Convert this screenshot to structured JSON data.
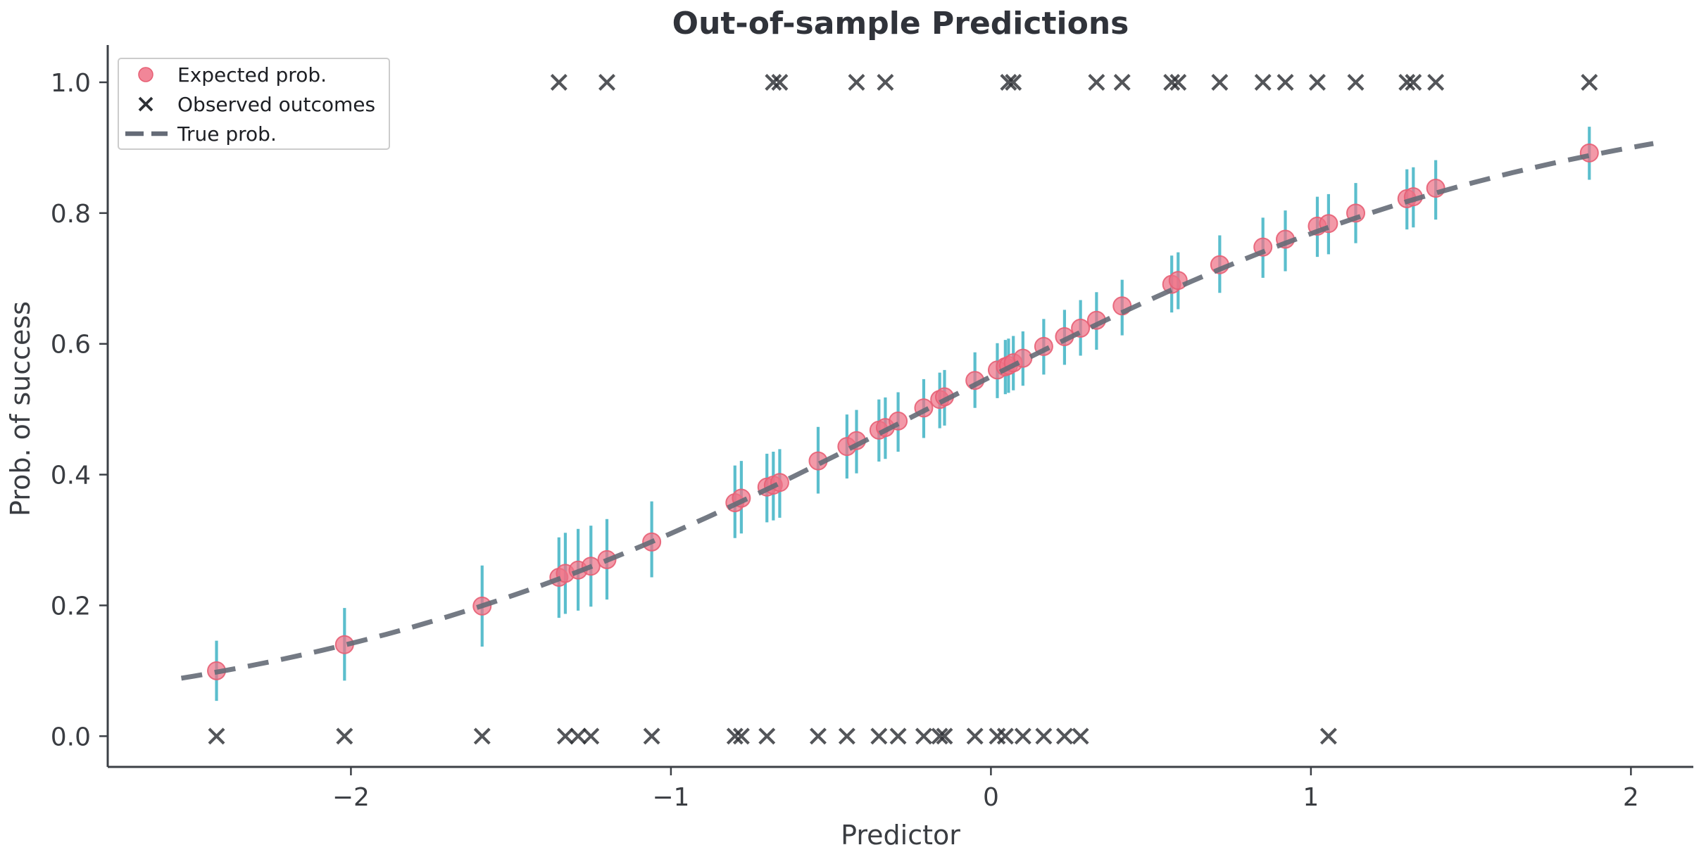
{
  "chart_data": {
    "type": "scatter",
    "title": "Out-of-sample Predictions",
    "xlabel": "Predictor",
    "ylabel": "Prob. of success",
    "xlim": [
      -2.76,
      2.195
    ],
    "ylim": [
      -0.047,
      1.057
    ],
    "x_ticks": [
      -2,
      -1,
      0,
      1,
      2
    ],
    "x_tick_labels": [
      "−2",
      "−1",
      "0",
      "1",
      "2"
    ],
    "y_ticks": [
      0.0,
      0.2,
      0.4,
      0.6,
      0.8,
      1.0
    ],
    "y_tick_labels": [
      "0.0",
      "0.2",
      "0.4",
      "0.6",
      "0.8",
      "1.0"
    ],
    "grid": false,
    "legend": {
      "position": "upper-left",
      "entries": [
        {
          "label": "Expected prob.",
          "marker": "circle"
        },
        {
          "label": "Observed outcomes",
          "marker": "x"
        },
        {
          "label": "True prob.",
          "marker": "dashed-line"
        }
      ]
    },
    "colors": {
      "expected_fill": "#ee7186",
      "expected_edge": "#e75f74",
      "errorbar": "#3fb3c5",
      "observed": "#2d3035",
      "true_line": "#656b77",
      "axis": "#3c4046",
      "legend_border": "#cccccc",
      "background": "#ffffff"
    },
    "series": [
      {
        "name": "Expected prob.",
        "kind": "points_with_errorbars_and_binary_outcome",
        "note": "p = expected probability (dot), lo/hi = error bar ends, obs = observed outcome plotted as x at 0 or 1",
        "points": [
          {
            "x": -2.42,
            "p": 0.1,
            "lo": 0.054,
            "hi": 0.146,
            "obs": 0
          },
          {
            "x": -2.02,
            "p": 0.14,
            "lo": 0.085,
            "hi": 0.196,
            "obs": 0
          },
          {
            "x": -1.59,
            "p": 0.199,
            "lo": 0.137,
            "hi": 0.261,
            "obs": 0
          },
          {
            "x": -1.35,
            "p": 0.243,
            "lo": 0.181,
            "hi": 0.304,
            "obs": 1
          },
          {
            "x": -1.33,
            "p": 0.249,
            "lo": 0.187,
            "hi": 0.311,
            "obs": 0
          },
          {
            "x": -1.29,
            "p": 0.254,
            "lo": 0.192,
            "hi": 0.317,
            "obs": 0
          },
          {
            "x": -1.25,
            "p": 0.26,
            "lo": 0.198,
            "hi": 0.322,
            "obs": 0
          },
          {
            "x": -1.2,
            "p": 0.27,
            "lo": 0.209,
            "hi": 0.332,
            "obs": 1
          },
          {
            "x": -1.06,
            "p": 0.297,
            "lo": 0.243,
            "hi": 0.359,
            "obs": 0
          },
          {
            "x": -0.8,
            "p": 0.357,
            "lo": 0.303,
            "hi": 0.414,
            "obs": 0
          },
          {
            "x": -0.78,
            "p": 0.364,
            "lo": 0.31,
            "hi": 0.421,
            "obs": 0
          },
          {
            "x": -0.7,
            "p": 0.381,
            "lo": 0.327,
            "hi": 0.432,
            "obs": 0
          },
          {
            "x": -0.68,
            "p": 0.384,
            "lo": 0.33,
            "hi": 0.435,
            "obs": 1
          },
          {
            "x": -0.66,
            "p": 0.388,
            "lo": 0.334,
            "hi": 0.439,
            "obs": 1
          },
          {
            "x": -0.54,
            "p": 0.421,
            "lo": 0.371,
            "hi": 0.473,
            "obs": 0
          },
          {
            "x": -0.45,
            "p": 0.443,
            "lo": 0.394,
            "hi": 0.492,
            "obs": 0
          },
          {
            "x": -0.42,
            "p": 0.452,
            "lo": 0.402,
            "hi": 0.499,
            "obs": 1
          },
          {
            "x": -0.35,
            "p": 0.468,
            "lo": 0.42,
            "hi": 0.515,
            "obs": 0
          },
          {
            "x": -0.33,
            "p": 0.472,
            "lo": 0.424,
            "hi": 0.518,
            "obs": 1
          },
          {
            "x": -0.29,
            "p": 0.482,
            "lo": 0.435,
            "hi": 0.526,
            "obs": 0
          },
          {
            "x": -0.21,
            "p": 0.502,
            "lo": 0.456,
            "hi": 0.546,
            "obs": 0
          },
          {
            "x": -0.16,
            "p": 0.515,
            "lo": 0.471,
            "hi": 0.556,
            "obs": 0
          },
          {
            "x": -0.145,
            "p": 0.519,
            "lo": 0.475,
            "hi": 0.56,
            "obs": 0
          },
          {
            "x": -0.05,
            "p": 0.544,
            "lo": 0.502,
            "hi": 0.587,
            "obs": 0
          },
          {
            "x": 0.02,
            "p": 0.56,
            "lo": 0.517,
            "hi": 0.601,
            "obs": 0
          },
          {
            "x": 0.045,
            "p": 0.565,
            "lo": 0.523,
            "hi": 0.606,
            "obs": 0
          },
          {
            "x": 0.055,
            "p": 0.567,
            "lo": 0.525,
            "hi": 0.608,
            "obs": 1
          },
          {
            "x": 0.07,
            "p": 0.571,
            "lo": 0.529,
            "hi": 0.612,
            "obs": 1
          },
          {
            "x": 0.1,
            "p": 0.578,
            "lo": 0.536,
            "hi": 0.619,
            "obs": 0
          },
          {
            "x": 0.165,
            "p": 0.596,
            "lo": 0.553,
            "hi": 0.638,
            "obs": 0
          },
          {
            "x": 0.23,
            "p": 0.611,
            "lo": 0.568,
            "hi": 0.652,
            "obs": 0
          },
          {
            "x": 0.28,
            "p": 0.624,
            "lo": 0.582,
            "hi": 0.667,
            "obs": 0
          },
          {
            "x": 0.33,
            "p": 0.636,
            "lo": 0.591,
            "hi": 0.679,
            "obs": 1
          },
          {
            "x": 0.41,
            "p": 0.658,
            "lo": 0.613,
            "hi": 0.698,
            "obs": 1
          },
          {
            "x": 0.565,
            "p": 0.691,
            "lo": 0.648,
            "hi": 0.735,
            "obs": 1
          },
          {
            "x": 0.585,
            "p": 0.697,
            "lo": 0.653,
            "hi": 0.74,
            "obs": 1
          },
          {
            "x": 0.715,
            "p": 0.721,
            "lo": 0.678,
            "hi": 0.766,
            "obs": 1
          },
          {
            "x": 0.85,
            "p": 0.748,
            "lo": 0.701,
            "hi": 0.793,
            "obs": 1
          },
          {
            "x": 0.92,
            "p": 0.76,
            "lo": 0.711,
            "hi": 0.804,
            "obs": 1
          },
          {
            "x": 1.02,
            "p": 0.78,
            "lo": 0.733,
            "hi": 0.825,
            "obs": 1
          },
          {
            "x": 1.055,
            "p": 0.784,
            "lo": 0.737,
            "hi": 0.829,
            "obs": 0
          },
          {
            "x": 1.14,
            "p": 0.8,
            "lo": 0.754,
            "hi": 0.846,
            "obs": 1
          },
          {
            "x": 1.3,
            "p": 0.822,
            "lo": 0.775,
            "hi": 0.867,
            "obs": 1
          },
          {
            "x": 1.32,
            "p": 0.825,
            "lo": 0.778,
            "hi": 0.87,
            "obs": 1
          },
          {
            "x": 1.39,
            "p": 0.838,
            "lo": 0.79,
            "hi": 0.881,
            "obs": 1
          },
          {
            "x": 1.87,
            "p": 0.892,
            "lo": 0.851,
            "hi": 0.932,
            "obs": 1
          }
        ]
      },
      {
        "name": "True prob.",
        "kind": "logistic_curve",
        "model": "p(x) = 1/(1+exp(-(intercept + slope*x)))",
        "intercept": 0.2,
        "slope": 1.0,
        "x_range": [
          -2.53,
          2.07
        ]
      }
    ]
  }
}
